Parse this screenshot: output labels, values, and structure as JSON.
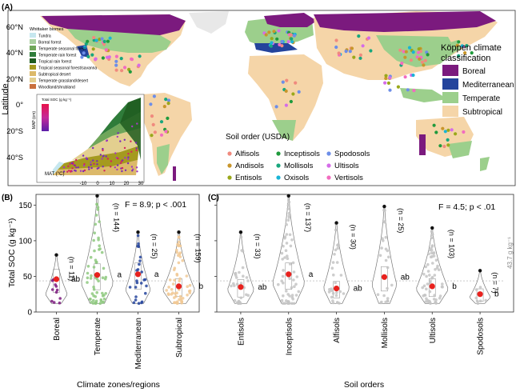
{
  "panel_labels": {
    "a": "(A)",
    "b": "(B)",
    "c": "(C)"
  },
  "map": {
    "ylabel": "Latitude",
    "lat_labels": [
      "60°N",
      "40°N",
      "20°N",
      "0°",
      "20°S",
      "40°S"
    ],
    "koppen_title_1": "Köppen climate",
    "koppen_title_2": "classification",
    "koppen_legend": [
      {
        "label": "Boreal",
        "color": "#7b1a7e"
      },
      {
        "label": "Mediterranean",
        "color": "#24449c"
      },
      {
        "label": "Temperate",
        "color": "#9ccf8c"
      },
      {
        "label": "Subtropical",
        "color": "#f5d5a8"
      }
    ],
    "whittaker": {
      "title": "Whittaker biomes",
      "biomes": [
        {
          "label": "Tundra",
          "color": "#c6e7ef"
        },
        {
          "label": "Boreal forest",
          "color": "#a9cfa0"
        },
        {
          "label": "Temperate seasonal forest",
          "color": "#6fa65a"
        },
        {
          "label": "Temperate rain forest",
          "color": "#2f7c3a"
        },
        {
          "label": "Tropical rain forest",
          "color": "#1e5c20"
        },
        {
          "label": "Tropical seasonal forest/savanna",
          "color": "#a59a1f"
        },
        {
          "label": "Subtropical desert",
          "color": "#dcb96a"
        },
        {
          "label": "Temperate grassland/desert",
          "color": "#e3cf8f"
        },
        {
          "label": "Woodland/shrubland",
          "color": "#c9703e"
        }
      ],
      "inset_xlabel": "MAT (°C)",
      "inset_ylabel": "MAP (cm)",
      "inset_xticks": [
        "-10",
        "0",
        "10",
        "20",
        "30"
      ],
      "inset_colorbar_title": "Total SOC (g kg⁻¹)"
    },
    "soil_legend": {
      "title": "Soil order (USDA)",
      "items": [
        {
          "label": "Alfisols",
          "color": "#f08a7e"
        },
        {
          "label": "Andisols",
          "color": "#c8962b"
        },
        {
          "label": "Entisols",
          "color": "#9aa81a"
        },
        {
          "label": "Inceptisols",
          "color": "#1f9a3c"
        },
        {
          "label": "Mollisols",
          "color": "#18a77d"
        },
        {
          "label": "Oxisols",
          "color": "#19b4d6"
        },
        {
          "label": "Spodosols",
          "color": "#6d8ee8"
        },
        {
          "label": "Ultisols",
          "color": "#d56ce8"
        },
        {
          "label": "Vertisols",
          "color": "#f26cbf"
        }
      ]
    }
  },
  "panel_b": {
    "stat": "F = 8.9; p < .001",
    "ylabel": "Total SOC (g kg⁻¹)",
    "xlabel": "Climate zones/regions"
  },
  "panel_c": {
    "stat": "F = 4.5; p < .01",
    "xlabel": "Soil orders",
    "ref_line_label": "43.7 g kg⁻¹"
  },
  "chart_data": [
    {
      "type": "violin",
      "panel": "B",
      "ylim": [
        0,
        165
      ],
      "yticks": [
        0,
        50,
        100,
        150
      ],
      "categories": [
        "Boreal",
        "Temperate",
        "Mediterranean",
        "Subtropical"
      ],
      "n_labels": [
        "(n = 11)",
        "(n = 144)",
        "(n = 25)",
        "(n = 159)"
      ],
      "n": [
        11,
        144,
        25,
        159
      ],
      "mean": [
        46,
        52,
        53,
        36
      ],
      "letters": [
        "ab",
        "a",
        "a",
        "b"
      ],
      "max_obs": [
        80,
        163,
        112,
        112
      ],
      "point_colors": [
        "#7b1a7e",
        "#8fc980",
        "#24449c",
        "#f1c995"
      ],
      "reference_line": 43.7
    },
    {
      "type": "violin",
      "panel": "C",
      "ylim": [
        0,
        165
      ],
      "yticks": [
        0,
        50,
        100,
        150
      ],
      "categories": [
        "Entisols",
        "Inceptisols",
        "Alfisols",
        "Mollisols",
        "Ultisols",
        "Spodosols"
      ],
      "n_labels": [
        "(n = 33)",
        "(n = 137)",
        "(n = 30)",
        "(n = 25)",
        "(n = 103)",
        "(n = 7)"
      ],
      "n": [
        33,
        137,
        30,
        25,
        103,
        7
      ],
      "mean": [
        35,
        53,
        33,
        49,
        36,
        25
      ],
      "letters": [
        "ab",
        "a",
        "ab",
        "ab",
        "b",
        "b"
      ],
      "max_obs": [
        112,
        163,
        125,
        148,
        118,
        58
      ],
      "reference_line": 43.7
    }
  ]
}
